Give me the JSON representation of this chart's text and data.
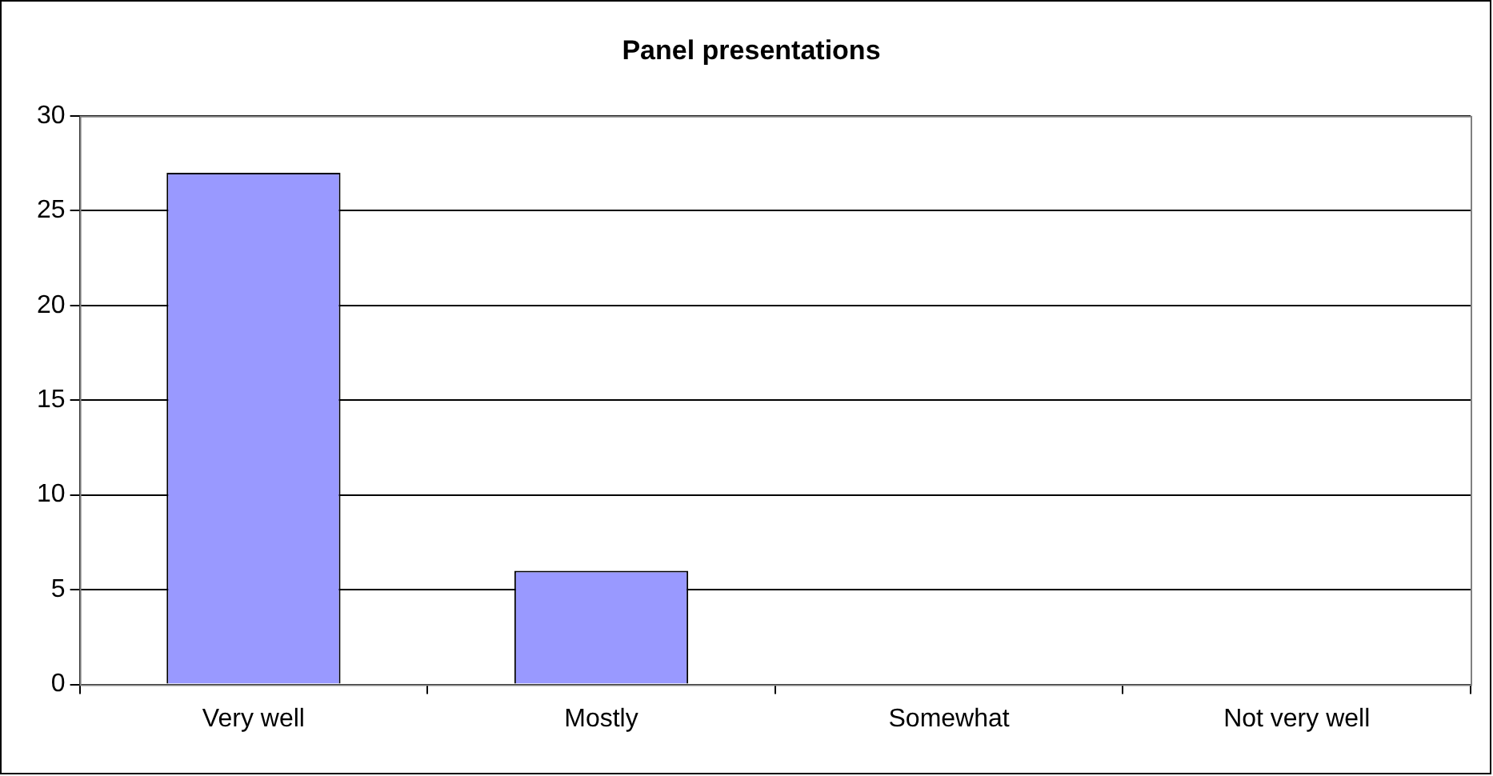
{
  "chart_data": {
    "type": "bar",
    "title": "Panel presentations",
    "categories": [
      "Very well",
      "Mostly",
      "Somewhat",
      "Not very well"
    ],
    "values": [
      27,
      6,
      0,
      0
    ],
    "color": "#9999ff",
    "ylim": [
      0,
      30
    ],
    "yticks": [
      0,
      5,
      10,
      15,
      20,
      25,
      30
    ],
    "grid": "y",
    "legend": false
  }
}
